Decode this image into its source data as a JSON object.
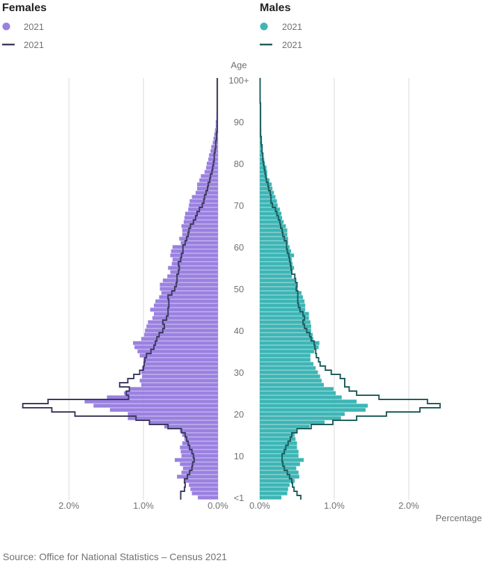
{
  "chart_data": {
    "type": "bar",
    "ylabel": "Age",
    "xlabel": "Percentage",
    "xlim": [
      0,
      2.5
    ],
    "x_ticks": [
      "2.0%",
      "1.0%",
      "0.0%"
    ],
    "x_ticks_values": [
      2.0,
      1.0,
      0.0
    ],
    "x_ticks_right": [
      "0.0%",
      "1.0%",
      "2.0%"
    ],
    "y_ticks": [
      "100+",
      "90",
      "80",
      "70",
      "60",
      "50",
      "40",
      "30",
      "20",
      "10",
      "<1"
    ],
    "y_ticks_values": [
      100,
      90,
      80,
      70,
      60,
      50,
      40,
      30,
      20,
      10,
      0
    ],
    "panels": {
      "females": {
        "title": "Females",
        "bar_label": "2021",
        "line_label": "2021",
        "bar_color": "#9a81e0",
        "line_color": "#3d3a5e"
      },
      "males": {
        "title": "Males",
        "bar_label": "2021",
        "line_label": "2021",
        "bar_color": "#3db5b5",
        "line_color": "#1f5c5c"
      }
    },
    "ages": [
      0,
      1,
      2,
      3,
      4,
      5,
      6,
      7,
      8,
      9,
      10,
      11,
      12,
      13,
      14,
      15,
      16,
      17,
      18,
      19,
      20,
      21,
      22,
      23,
      24,
      25,
      26,
      27,
      28,
      29,
      30,
      31,
      32,
      33,
      34,
      35,
      36,
      37,
      38,
      39,
      40,
      41,
      42,
      43,
      44,
      45,
      46,
      47,
      48,
      49,
      50,
      51,
      52,
      53,
      54,
      55,
      56,
      57,
      58,
      59,
      60,
      61,
      62,
      63,
      64,
      65,
      66,
      67,
      68,
      69,
      70,
      71,
      72,
      73,
      74,
      75,
      76,
      77,
      78,
      79,
      80,
      81,
      82,
      83,
      84,
      85,
      86,
      87,
      88,
      89,
      90,
      91,
      92,
      93,
      94,
      95,
      96,
      97,
      98,
      99,
      100
    ],
    "series": [
      {
        "name": "Females 2021 (bars)",
        "values": [
          0.27,
          0.35,
          0.37,
          0.39,
          0.45,
          0.55,
          0.49,
          0.47,
          0.51,
          0.58,
          0.49,
          0.5,
          0.51,
          0.48,
          0.45,
          0.48,
          0.51,
          0.72,
          0.93,
          1.21,
          1.21,
          1.45,
          1.67,
          1.79,
          1.49,
          1.26,
          1.19,
          1.03,
          1.05,
          1.02,
          1.03,
          1.02,
          0.98,
          1.0,
          1.05,
          1.08,
          1.12,
          1.14,
          1.03,
          0.99,
          0.98,
          0.96,
          0.94,
          0.88,
          0.86,
          0.91,
          0.86,
          0.84,
          0.79,
          0.76,
          0.78,
          0.78,
          0.74,
          0.68,
          0.64,
          0.67,
          0.62,
          0.61,
          0.64,
          0.63,
          0.61,
          0.5,
          0.52,
          0.48,
          0.48,
          0.49,
          0.46,
          0.45,
          0.44,
          0.4,
          0.39,
          0.38,
          0.35,
          0.3,
          0.28,
          0.28,
          0.25,
          0.23,
          0.18,
          0.16,
          0.15,
          0.13,
          0.12,
          0.1,
          0.09,
          0.07,
          0.06,
          0.05,
          0.04,
          0.03,
          0.03,
          0.02,
          0.02,
          0.01,
          0.01,
          0.01,
          0.01,
          0.005,
          0.005,
          0.005,
          0.005
        ]
      },
      {
        "name": "Females 2021 (line)",
        "values": [
          0.5,
          0.5,
          0.45,
          0.44,
          0.45,
          0.41,
          0.38,
          0.35,
          0.34,
          0.32,
          0.33,
          0.35,
          0.38,
          0.4,
          0.42,
          0.44,
          0.49,
          0.67,
          0.92,
          1.1,
          1.92,
          2.23,
          2.62,
          2.28,
          1.2,
          1.23,
          1.19,
          1.32,
          1.21,
          1.13,
          1.05,
          1.0,
          0.99,
          0.98,
          0.96,
          0.9,
          0.86,
          0.84,
          0.82,
          0.79,
          0.74,
          0.72,
          0.74,
          0.69,
          0.67,
          0.67,
          0.66,
          0.66,
          0.67,
          0.62,
          0.58,
          0.56,
          0.55,
          0.55,
          0.53,
          0.52,
          0.53,
          0.5,
          0.49,
          0.47,
          0.47,
          0.44,
          0.42,
          0.4,
          0.39,
          0.37,
          0.33,
          0.3,
          0.28,
          0.25,
          0.21,
          0.19,
          0.18,
          0.16,
          0.14,
          0.13,
          0.11,
          0.1,
          0.08,
          0.07,
          0.06,
          0.05,
          0.05,
          0.04,
          0.03,
          0.03,
          0.02,
          0.02,
          0.01,
          0.01,
          0.01,
          0.01,
          0.01,
          0.01,
          0.01,
          0.01,
          0.01,
          0.01,
          0.01,
          0.01,
          0.01
        ]
      },
      {
        "name": "Males 2021 (bars)",
        "values": [
          0.29,
          0.37,
          0.38,
          0.4,
          0.47,
          0.53,
          0.52,
          0.49,
          0.54,
          0.59,
          0.52,
          0.52,
          0.5,
          0.5,
          0.48,
          0.47,
          0.5,
          0.67,
          0.87,
          1.09,
          1.14,
          1.42,
          1.45,
          1.3,
          1.1,
          1.02,
          0.99,
          0.86,
          0.83,
          0.81,
          0.78,
          0.75,
          0.72,
          0.68,
          0.68,
          0.73,
          0.79,
          0.8,
          0.72,
          0.71,
          0.69,
          0.69,
          0.68,
          0.66,
          0.66,
          0.61,
          0.61,
          0.6,
          0.58,
          0.56,
          0.51,
          0.5,
          0.48,
          0.43,
          0.44,
          0.46,
          0.44,
          0.43,
          0.46,
          0.42,
          0.4,
          0.38,
          0.38,
          0.37,
          0.37,
          0.35,
          0.32,
          0.3,
          0.29,
          0.27,
          0.24,
          0.23,
          0.21,
          0.19,
          0.17,
          0.16,
          0.13,
          0.1,
          0.1,
          0.09,
          0.07,
          0.06,
          0.05,
          0.04,
          0.04,
          0.03,
          0.02,
          0.02,
          0.02,
          0.01,
          0.01,
          0.01,
          0.01,
          0.005,
          0.005,
          0.005,
          0.005,
          0.005,
          0.005,
          0.005,
          0.005
        ]
      },
      {
        "name": "Males 2021 (line)",
        "values": [
          0.55,
          0.5,
          0.46,
          0.44,
          0.43,
          0.4,
          0.37,
          0.33,
          0.31,
          0.3,
          0.3,
          0.33,
          0.35,
          0.38,
          0.41,
          0.43,
          0.5,
          0.69,
          0.98,
          1.3,
          1.7,
          2.15,
          2.42,
          2.25,
          1.6,
          1.3,
          1.2,
          1.14,
          1.14,
          1.08,
          0.96,
          0.88,
          0.81,
          0.79,
          0.76,
          0.75,
          0.74,
          0.73,
          0.69,
          0.67,
          0.63,
          0.6,
          0.58,
          0.6,
          0.58,
          0.54,
          0.52,
          0.51,
          0.51,
          0.51,
          0.49,
          0.5,
          0.48,
          0.47,
          0.43,
          0.42,
          0.41,
          0.4,
          0.39,
          0.37,
          0.36,
          0.36,
          0.33,
          0.31,
          0.3,
          0.28,
          0.27,
          0.25,
          0.23,
          0.21,
          0.17,
          0.15,
          0.15,
          0.14,
          0.12,
          0.11,
          0.09,
          0.08,
          0.07,
          0.06,
          0.05,
          0.04,
          0.04,
          0.03,
          0.03,
          0.02,
          0.02,
          0.01,
          0.01,
          0.01,
          0.01,
          0.01,
          0.01,
          0.01,
          0.01,
          0.005,
          0.005,
          0.005,
          0.005,
          0.005,
          0.005
        ]
      }
    ]
  },
  "source": "Source: Office for National Statistics – Census 2021"
}
